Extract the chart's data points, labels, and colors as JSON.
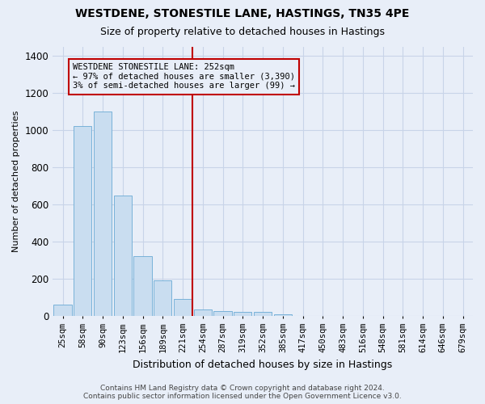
{
  "title": "WESTDENE, STONESTILE LANE, HASTINGS, TN35 4PE",
  "subtitle": "Size of property relative to detached houses in Hastings",
  "xlabel": "Distribution of detached houses by size in Hastings",
  "ylabel": "Number of detached properties",
  "categories": [
    "25sqm",
    "58sqm",
    "90sqm",
    "123sqm",
    "156sqm",
    "189sqm",
    "221sqm",
    "254sqm",
    "287sqm",
    "319sqm",
    "352sqm",
    "385sqm",
    "417sqm",
    "450sqm",
    "483sqm",
    "516sqm",
    "548sqm",
    "581sqm",
    "614sqm",
    "646sqm",
    "679sqm"
  ],
  "values": [
    60,
    1020,
    1100,
    650,
    320,
    190,
    90,
    35,
    25,
    20,
    20,
    10,
    0,
    0,
    0,
    0,
    0,
    0,
    0,
    0,
    0
  ],
  "bar_color": "#c9ddf0",
  "bar_edge_color": "#6aaad4",
  "vline_x_index": 6.5,
  "vline_color": "#c00000",
  "annotation_text_line1": "WESTDENE STONESTILE LANE: 252sqm",
  "annotation_text_line2": "← 97% of detached houses are smaller (3,390)",
  "annotation_text_line3": "3% of semi-detached houses are larger (99) →",
  "annotation_box_color": "#c00000",
  "ylim": [
    0,
    1450
  ],
  "yticks": [
    0,
    200,
    400,
    600,
    800,
    1000,
    1200,
    1400
  ],
  "grid_color": "#c8d4e8",
  "background_color": "#e8eef8",
  "footer_line1": "Contains HM Land Registry data © Crown copyright and database right 2024.",
  "footer_line2": "Contains public sector information licensed under the Open Government Licence v3.0."
}
